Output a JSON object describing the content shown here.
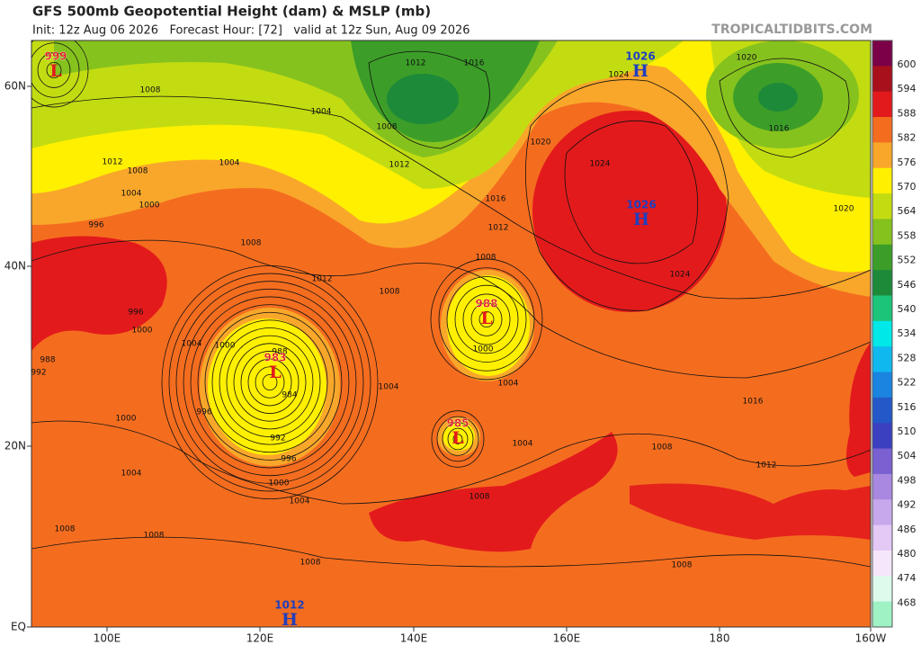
{
  "header": {
    "title": "GFS 500mb Geopotential Height (dam) & MSLP (mb)",
    "subtitle": "Init: 12z Aug 06 2026   Forecast Hour: [72]   valid at 12z Sun, Aug 09 2026",
    "watermark": "TROPICALTIDBITS.COM"
  },
  "colorbar": {
    "labels": [
      600,
      594,
      588,
      582,
      576,
      570,
      564,
      558,
      552,
      546,
      540,
      534,
      528,
      522,
      516,
      510,
      504,
      498,
      492,
      486,
      480,
      474,
      468
    ],
    "colors": [
      "#7b0048",
      "#a8101c",
      "#e31a1c",
      "#f46d1f",
      "#f9a72a",
      "#fff000",
      "#c3dc12",
      "#86c21e",
      "#3c9e28",
      "#1d8a3a",
      "#1cc47a",
      "#00e8e8",
      "#10b8f0",
      "#1a84e0",
      "#2458c8",
      "#3a40c0",
      "#7a60d0",
      "#a888e0",
      "#c8a8ec",
      "#e4c8f6",
      "#f6e6fc",
      "#dcfbec",
      "#9ef2c4"
    ]
  },
  "axes": {
    "x_labels": [
      "100E",
      "120E",
      "140E",
      "160E",
      "180",
      "160W"
    ],
    "y_labels": [
      "60N",
      "40N",
      "20N",
      "EQ"
    ]
  },
  "centers": [
    {
      "letter": "L",
      "value": "999"
    },
    {
      "letter": "H",
      "value": "1026"
    },
    {
      "letter": "H",
      "value": "1026"
    },
    {
      "letter": "L",
      "value": "988"
    },
    {
      "letter": "L",
      "value": "983"
    },
    {
      "letter": "L",
      "value": "985"
    },
    {
      "letter": "H",
      "value": "1012"
    }
  ],
  "isobar_labels": [
    "1008",
    "1004",
    "1012",
    "1016",
    "1008",
    "1012",
    "1020",
    "1024",
    "1024",
    "1012",
    "1008",
    "1004",
    "1000",
    "996",
    "1004",
    "1016",
    "1012",
    "1008",
    "1008",
    "1012",
    "1008",
    "996",
    "1000",
    "1004",
    "1000",
    "988",
    "984",
    "996",
    "992",
    "996",
    "1000",
    "1004",
    "1004",
    "1000",
    "1004",
    "1004",
    "1000",
    "1004",
    "1008",
    "1008",
    "1012",
    "1016",
    "1024",
    "1020",
    "1016",
    "1020",
    "1008",
    "1008",
    "1008",
    "1008",
    "988",
    "992"
  ]
}
